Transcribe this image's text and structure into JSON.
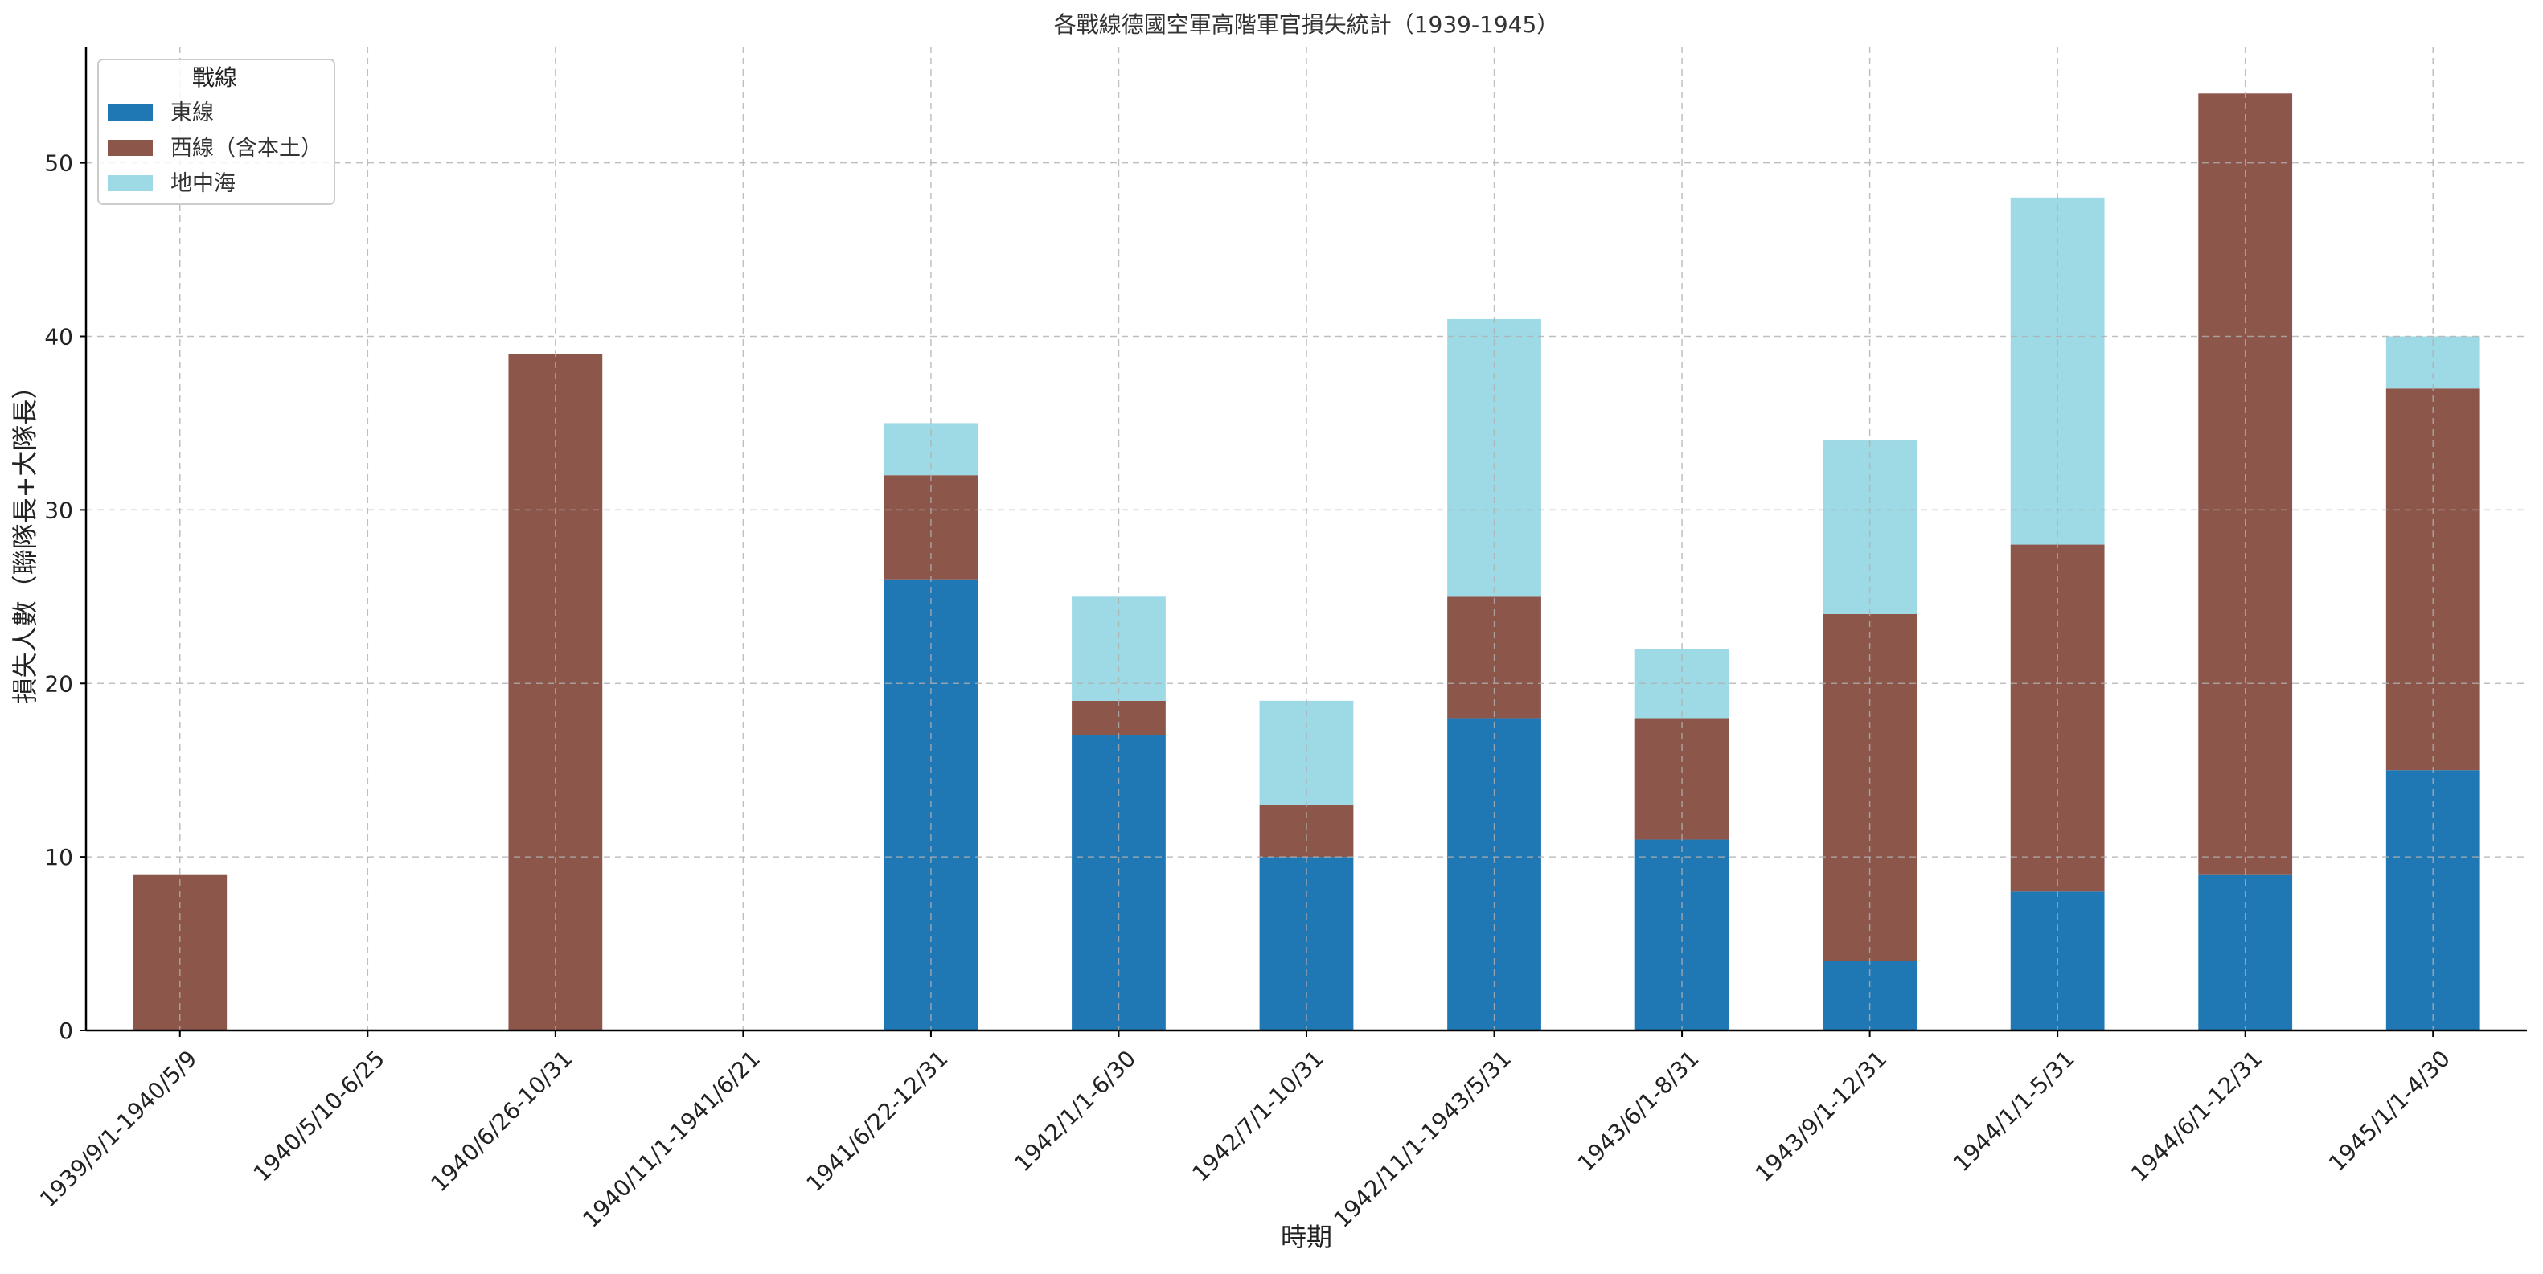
{
  "chart_data": {
    "type": "bar",
    "stacked": true,
    "title": "各戰線德國空軍高階軍官損失統計（1939-1945）",
    "xlabel": "時期",
    "ylabel": "損失人數（聯隊長+大隊長）",
    "ylim": [
      0,
      56.7
    ],
    "yticks": [
      0,
      10,
      20,
      30,
      40,
      50
    ],
    "grid": true,
    "legend": {
      "title": "戰線",
      "placement": "top-left"
    },
    "categories": [
      "1939/9/1-1940/5/9",
      "1940/5/10-6/25",
      "1940/6/26-10/31",
      "1940/11/1-1941/6/21",
      "1941/6/22-12/31",
      "1942/1/1-6/30",
      "1942/7/1-10/31",
      "1942/11/1-1943/5/31",
      "1943/6/1-8/31",
      "1943/9/1-12/31",
      "1944/1/1-5/31",
      "1944/6/1-12/31",
      "1945/1/1-4/30"
    ],
    "series": [
      {
        "name": "東線",
        "color": "#1f77b4",
        "values": [
          0,
          0,
          0,
          0,
          26,
          17,
          10,
          18,
          11,
          4,
          8,
          9,
          15
        ]
      },
      {
        "name": "西線（含本土）",
        "color": "#8c564b",
        "values": [
          9,
          0,
          39,
          0,
          6,
          2,
          3,
          7,
          7,
          20,
          20,
          45,
          22
        ]
      },
      {
        "name": "地中海",
        "color": "#9edae5",
        "values": [
          0,
          0,
          0,
          0,
          3,
          6,
          6,
          16,
          4,
          10,
          20,
          0,
          3
        ]
      }
    ]
  }
}
